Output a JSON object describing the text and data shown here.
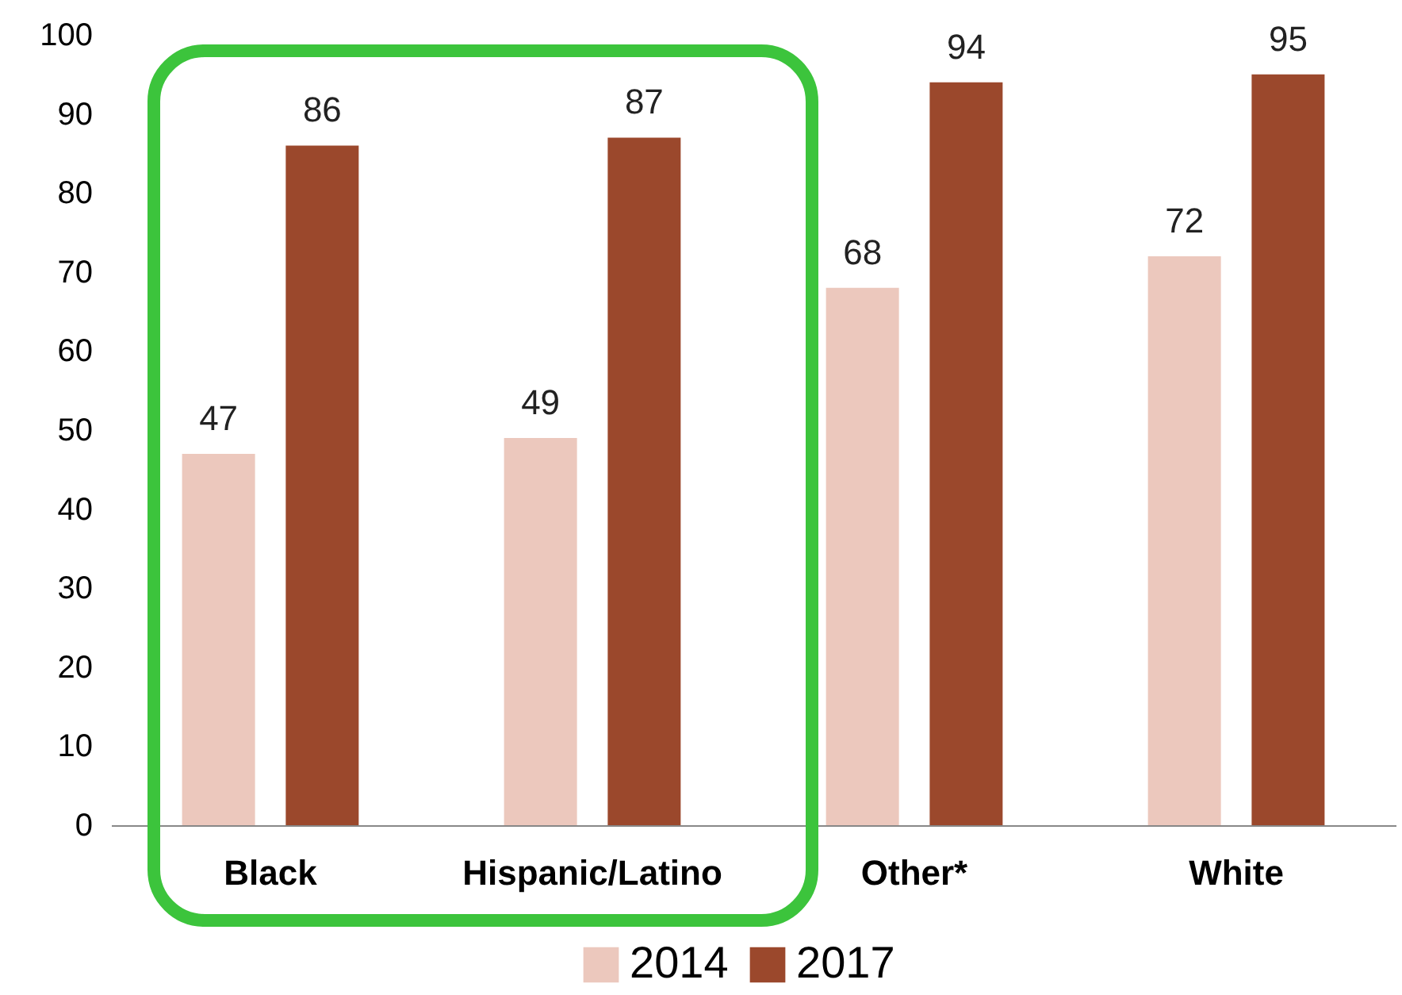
{
  "chart_data": {
    "type": "bar",
    "categories": [
      "Black",
      "Hispanic/Latino",
      "Other*",
      "White"
    ],
    "series": [
      {
        "name": "2014",
        "color": "#ecc8bd",
        "values": [
          47,
          49,
          68,
          72
        ]
      },
      {
        "name": "2017",
        "color": "#9b482c",
        "values": [
          86,
          87,
          94,
          95
        ]
      }
    ],
    "ylim": [
      0,
      100
    ],
    "yticks": [
      0,
      10,
      20,
      30,
      40,
      50,
      60,
      70,
      80,
      90,
      100
    ],
    "grid": false,
    "data_labels": true,
    "legend": "bottom"
  }
}
